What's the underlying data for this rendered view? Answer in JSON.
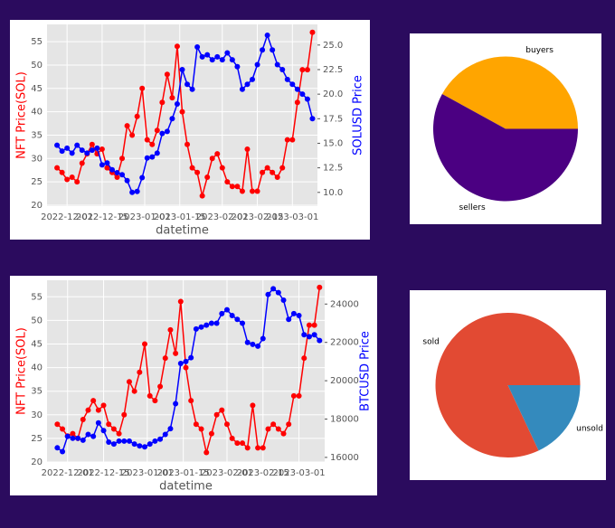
{
  "chart_data": [
    {
      "type": "line",
      "xlabel": "datetime",
      "ylabel": "NFT Price(SOL)",
      "y2label": "SOLUSD Price",
      "x": [
        "2022-11-27",
        "2022-11-29",
        "2022-12-01",
        "2022-12-03",
        "2022-12-05",
        "2022-12-07",
        "2022-12-09",
        "2022-12-11",
        "2022-12-13",
        "2022-12-15",
        "2022-12-17",
        "2022-12-19",
        "2022-12-21",
        "2022-12-23",
        "2022-12-25",
        "2022-12-27",
        "2022-12-29",
        "2022-12-31",
        "2023-01-02",
        "2023-01-04",
        "2023-01-06",
        "2023-01-08",
        "2023-01-10",
        "2023-01-12",
        "2023-01-14",
        "2023-01-16",
        "2023-01-18",
        "2023-01-20",
        "2023-01-22",
        "2023-01-24",
        "2023-01-26",
        "2023-01-28",
        "2023-01-30",
        "2023-02-01",
        "2023-02-03",
        "2023-02-05",
        "2023-02-07",
        "2023-02-09",
        "2023-02-11",
        "2023-02-13",
        "2023-02-15",
        "2023-02-17",
        "2023-02-19",
        "2023-02-21",
        "2023-02-23",
        "2023-02-25",
        "2023-02-27",
        "2023-03-01",
        "2023-03-03",
        "2023-03-05",
        "2023-03-07",
        "2023-03-09"
      ],
      "series": [
        {
          "name": "NFT Price(SOL)",
          "color": "#ff0000",
          "axis": "y",
          "values": [
            28,
            27,
            25.5,
            26,
            25,
            29,
            31,
            33,
            31,
            32,
            28,
            27,
            26,
            30,
            37,
            35,
            39,
            45,
            34,
            33,
            36,
            42,
            48,
            43,
            54,
            40,
            33,
            28,
            27,
            22,
            26,
            30,
            31,
            28,
            25,
            24,
            24,
            23,
            32,
            23,
            23,
            27,
            28,
            27,
            26,
            28,
            34,
            34,
            42,
            49,
            49,
            57
          ]
        },
        {
          "name": "SOLUSD Price",
          "color": "#0000ff",
          "axis": "y2",
          "values": [
            14.8,
            14.2,
            14.5,
            14,
            14.8,
            14.3,
            14,
            14.3,
            14.5,
            12.8,
            13,
            12.3,
            12,
            11.8,
            11.2,
            10,
            10.1,
            11.5,
            13.5,
            13.6,
            14,
            16,
            16.2,
            17.5,
            19,
            22.5,
            21,
            20.5,
            24.8,
            23.8,
            24,
            23.5,
            23.8,
            23.5,
            24.2,
            23.5,
            22.8,
            20.5,
            21,
            21.5,
            23,
            24.5,
            26,
            24.5,
            23,
            22.5,
            21.5,
            21,
            20.5,
            20,
            19.5,
            17.5
          ]
        }
      ],
      "xlim": [
        "2022-11-23",
        "2023-03-11"
      ],
      "xticks": [
        "2022-12-01",
        "2022-12-15",
        "2023-01-01",
        "2023-01-15",
        "2023-02-01",
        "2023-02-15",
        "2023-03-01"
      ],
      "ylim": [
        19.8,
        58.7
      ],
      "yticks": [
        20,
        25,
        30,
        35,
        40,
        45,
        50,
        55
      ],
      "y2lim": [
        8.6,
        27.1
      ],
      "y2ticks": [
        {
          "value": 10,
          "label": "10.0"
        },
        {
          "value": 12.5,
          "label": "12.5"
        },
        {
          "value": 15,
          "label": "15.0"
        },
        {
          "value": 17.5,
          "label": "17.5"
        },
        {
          "value": 20,
          "label": "20.0"
        },
        {
          "value": 22.5,
          "label": "22.5"
        },
        {
          "value": 25,
          "label": "25.0"
        }
      ],
      "grid": true
    },
    {
      "type": "pie",
      "categories": [
        "buyers",
        "sellers"
      ],
      "values": [
        42,
        58
      ],
      "colors": [
        "#ffa500",
        "#4b0082"
      ]
    },
    {
      "type": "line",
      "xlabel": "datetime",
      "ylabel": "NFT Price(SOL)",
      "y2label": "BTCUSD Price",
      "x": [
        "2022-11-27",
        "2022-11-29",
        "2022-12-01",
        "2022-12-03",
        "2022-12-05",
        "2022-12-07",
        "2022-12-09",
        "2022-12-11",
        "2022-12-13",
        "2022-12-15",
        "2022-12-17",
        "2022-12-19",
        "2022-12-21",
        "2022-12-23",
        "2022-12-25",
        "2022-12-27",
        "2022-12-29",
        "2022-12-31",
        "2023-01-02",
        "2023-01-04",
        "2023-01-06",
        "2023-01-08",
        "2023-01-10",
        "2023-01-12",
        "2023-01-14",
        "2023-01-16",
        "2023-01-18",
        "2023-01-20",
        "2023-01-22",
        "2023-01-24",
        "2023-01-26",
        "2023-01-28",
        "2023-01-30",
        "2023-02-01",
        "2023-02-03",
        "2023-02-05",
        "2023-02-07",
        "2023-02-09",
        "2023-02-11",
        "2023-02-13",
        "2023-02-15",
        "2023-02-17",
        "2023-02-19",
        "2023-02-21",
        "2023-02-23",
        "2023-02-25",
        "2023-02-27",
        "2023-03-01",
        "2023-03-03",
        "2023-03-05",
        "2023-03-07",
        "2023-03-09"
      ],
      "series": [
        {
          "name": "NFT Price(SOL)",
          "color": "#ff0000",
          "axis": "y",
          "values": [
            28,
            27,
            25.5,
            26,
            25,
            29,
            31,
            33,
            31,
            32,
            28,
            27,
            26,
            30,
            37,
            35,
            39,
            45,
            34,
            33,
            36,
            42,
            48,
            43,
            54,
            40,
            33,
            28,
            27,
            22,
            26,
            30,
            31,
            28,
            25,
            24,
            24,
            23,
            32,
            23,
            23,
            27,
            28,
            27,
            26,
            28,
            34,
            34,
            42,
            49,
            49,
            57
          ]
        },
        {
          "name": "BTCUSD Price",
          "color": "#0000ff",
          "axis": "y2",
          "values": [
            16500,
            16300,
            17100,
            17000,
            17000,
            16900,
            17200,
            17100,
            17800,
            17400,
            16800,
            16700,
            16850,
            16850,
            16850,
            16700,
            16600,
            16550,
            16700,
            16850,
            16950,
            17200,
            17500,
            18800,
            20900,
            21000,
            21200,
            22700,
            22800,
            22900,
            23000,
            23000,
            23500,
            23700,
            23400,
            23200,
            23000,
            22000,
            21900,
            21800,
            22200,
            24500,
            24800,
            24600,
            24200,
            23200,
            23500,
            23400,
            22400,
            22300,
            22400,
            22100
          ]
        }
      ],
      "xlim": [
        "2022-11-23",
        "2023-03-11"
      ],
      "xticks": [
        "2022-12-01",
        "2022-12-15",
        "2023-01-01",
        "2023-01-15",
        "2023-02-01",
        "2023-02-15",
        "2023-03-01"
      ],
      "ylim": [
        20,
        58.5
      ],
      "yticks": [
        20,
        25,
        30,
        35,
        40,
        45,
        50,
        55
      ],
      "y2lim": [
        15760,
        25240
      ],
      "y2ticks": [
        16000,
        18000,
        20000,
        22000,
        24000
      ],
      "grid": true
    },
    {
      "type": "pie",
      "categories": [
        "sold",
        "unsold"
      ],
      "values": [
        82,
        18
      ],
      "colors": [
        "#e24a33",
        "#348abd"
      ]
    }
  ]
}
